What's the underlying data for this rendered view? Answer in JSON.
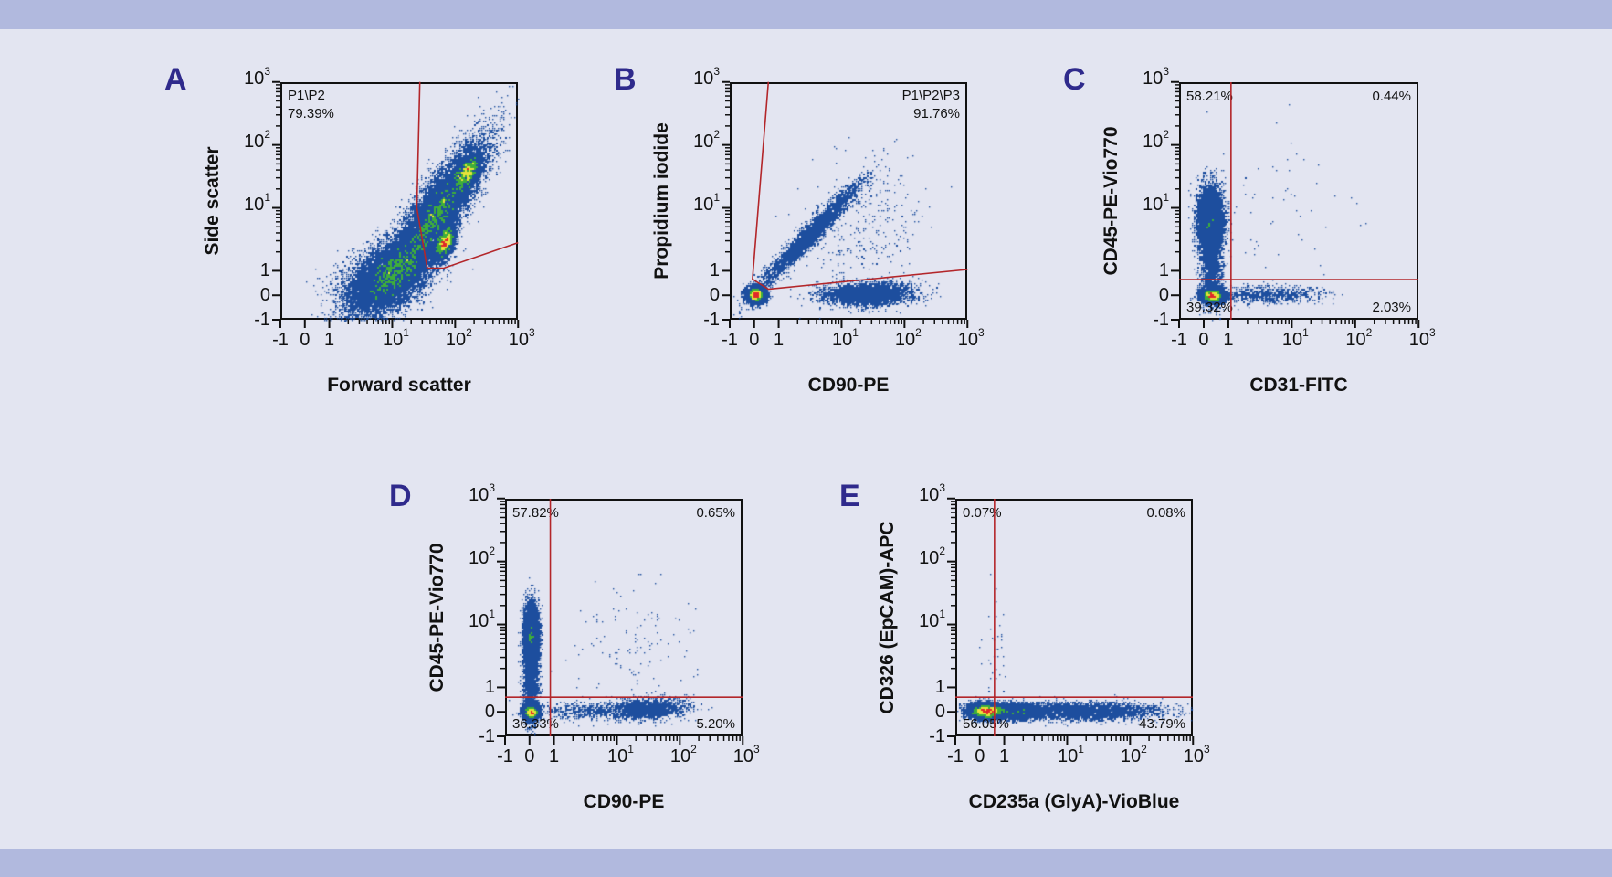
{
  "colors": {
    "background": "#e3e5f1",
    "band": "#b1b9de",
    "panel_letter": "#2f2a8c",
    "points_low": "#1d4e9e",
    "points_mid": "#3fae3a",
    "points_high": "#e8e23a",
    "points_peak": "#e0282a",
    "gate": "#b3262a"
  },
  "chart_data": [
    {
      "type": "scatter",
      "panel": "A",
      "xlabel": "Forward scatter",
      "ylabel": "Side scatter",
      "scale": "biexponential",
      "xlim": [
        -1,
        1000
      ],
      "ylim": [
        -1,
        1000
      ],
      "ticks": [
        {
          "value": -1,
          "label": "-1"
        },
        {
          "value": 0,
          "label": "0"
        },
        {
          "value": 1,
          "label": "1"
        },
        {
          "value": 10,
          "label": "10",
          "sup": "1"
        },
        {
          "value": 100,
          "label": "10",
          "sup": "2"
        },
        {
          "value": 1000,
          "label": "10",
          "sup": "3"
        }
      ],
      "gate": {
        "type": "polygon",
        "name": "P1\\P2",
        "percent": "79.39%",
        "label_position": "top-left",
        "points": [
          [
            27.5,
            1000
          ],
          [
            24.6,
            10
          ],
          [
            36,
            1.1
          ],
          [
            65,
            1.1
          ],
          [
            1000,
            2.8
          ]
        ]
      },
      "populations": [
        {
          "x": 8,
          "y": 0.8,
          "sd_x_decades": 0.35,
          "sd_y_decades": 0.3,
          "rho": 0.5,
          "n": 9000
        },
        {
          "x": 45,
          "y": 8,
          "sd_x_decades": 0.38,
          "sd_y_decades": 0.55,
          "rho": 0.85,
          "n": 12000
        },
        {
          "x": 65,
          "y": 3,
          "sd_x_decades": 0.08,
          "sd_y_decades": 0.13,
          "rho": 0.5,
          "n": 2500
        },
        {
          "x": 150,
          "y": 40,
          "sd_x_decades": 0.1,
          "sd_y_decades": 0.14,
          "rho": 0.5,
          "n": 2200
        }
      ]
    },
    {
      "type": "scatter",
      "panel": "B",
      "xlabel": "CD90-PE",
      "ylabel": "Propidium iodide",
      "scale": "biexponential",
      "xlim": [
        -1,
        1000
      ],
      "ylim": [
        -1,
        1000
      ],
      "ticks": [
        {
          "value": -1,
          "label": "-1"
        },
        {
          "value": 0,
          "label": "0"
        },
        {
          "value": 1,
          "label": "1"
        },
        {
          "value": 10,
          "label": "10",
          "sup": "1"
        },
        {
          "value": 100,
          "label": "10",
          "sup": "2"
        },
        {
          "value": 1000,
          "label": "10",
          "sup": "3"
        }
      ],
      "gate": {
        "type": "polygon",
        "name": "P1\\P2\\P3",
        "percent": "91.76%",
        "label_position": "top-right",
        "points": [
          [
            0.58,
            1000
          ],
          [
            -0.07,
            0.66
          ],
          [
            0.58,
            0.25
          ],
          [
            1000,
            1.05
          ]
        ]
      },
      "populations": [
        {
          "x": 0,
          "y": 0.1,
          "sd_x_decades": 0.07,
          "sd_y_decades": 0.06,
          "rho": 0,
          "n": 6000
        },
        {
          "x": 3,
          "y": 4,
          "sd_x_decades": 0.4,
          "sd_y_decades": 0.42,
          "rho": 0.97,
          "n": 3000
        },
        {
          "x": 25,
          "y": 0.1,
          "sd_x_decades": 0.35,
          "sd_y_decades": 0.09,
          "rho": 0.1,
          "n": 3000
        },
        {
          "x": 20,
          "y": 5,
          "sd_x_decades": 0.5,
          "sd_y_decades": 0.5,
          "rho": 0.3,
          "n": 300
        }
      ]
    },
    {
      "type": "scatter",
      "panel": "C",
      "xlabel": "CD31-FITC",
      "ylabel": "CD45-PE-Vio770",
      "scale": "biexponential",
      "xlim": [
        -1,
        1000
      ],
      "ylim": [
        -1,
        1000
      ],
      "ticks": [
        {
          "value": -1,
          "label": "-1"
        },
        {
          "value": 0,
          "label": "0"
        },
        {
          "value": 1,
          "label": "1"
        },
        {
          "value": 10,
          "label": "10",
          "sup": "1"
        },
        {
          "value": 100,
          "label": "10",
          "sup": "2"
        },
        {
          "value": 1000,
          "label": "10",
          "sup": "3"
        }
      ],
      "gate": {
        "type": "quadrant",
        "x": 1.1,
        "y": 0.64,
        "quadrants": {
          "top-left": "58.21%",
          "top-right": "0.44%",
          "bottom-left": "39.32%",
          "bottom-right": "2.03%"
        }
      },
      "populations": [
        {
          "x": 0.2,
          "y": 7,
          "sd_x_decades": 0.1,
          "sd_y_decades": 0.25,
          "rho": 0,
          "n": 5000
        },
        {
          "x": 0.3,
          "y": 0.05,
          "sd_x_decades": 0.09,
          "sd_y_decades": 0.06,
          "rho": 0,
          "n": 4000
        },
        {
          "x": 0.25,
          "y": 1.5,
          "sd_x_decades": 0.09,
          "sd_y_decades": 0.35,
          "rho": 0,
          "n": 1500
        },
        {
          "x": 4,
          "y": 0.1,
          "sd_x_decades": 0.4,
          "sd_y_decades": 0.07,
          "rho": 0,
          "n": 700
        },
        {
          "x": 5,
          "y": 10,
          "sd_x_decades": 0.6,
          "sd_y_decades": 0.6,
          "rho": 0,
          "n": 60
        }
      ]
    },
    {
      "type": "scatter",
      "panel": "D",
      "xlabel": "CD90-PE",
      "ylabel": "CD45-PE-Vio770",
      "scale": "biexponential",
      "xlim": [
        -1,
        1000
      ],
      "ylim": [
        -1,
        1000
      ],
      "ticks": [
        {
          "value": -1,
          "label": "-1"
        },
        {
          "value": 0,
          "label": "0"
        },
        {
          "value": 1,
          "label": "1"
        },
        {
          "value": 10,
          "label": "10",
          "sup": "1"
        },
        {
          "value": 100,
          "label": "10",
          "sup": "2"
        },
        {
          "value": 1000,
          "label": "10",
          "sup": "3"
        }
      ],
      "gate": {
        "type": "quadrant",
        "x": 0.85,
        "y": 0.6,
        "quadrants": {
          "top-left": "57.82%",
          "top-right": "0.65%",
          "bottom-left": "36.33%",
          "bottom-right": "5.20%"
        }
      },
      "populations": [
        {
          "x": 0,
          "y": 7,
          "sd_x_decades": 0.06,
          "sd_y_decades": 0.25,
          "rho": 0,
          "n": 5000
        },
        {
          "x": 0,
          "y": 0.05,
          "sd_x_decades": 0.06,
          "sd_y_decades": 0.06,
          "rho": 0,
          "n": 3500
        },
        {
          "x": 0,
          "y": 1.5,
          "sd_x_decades": 0.06,
          "sd_y_decades": 0.35,
          "rho": 0,
          "n": 1500
        },
        {
          "x": 30,
          "y": 0.2,
          "sd_x_decades": 0.3,
          "sd_y_decades": 0.08,
          "rho": 0.2,
          "n": 1500
        },
        {
          "x": 3,
          "y": 0.1,
          "sd_x_decades": 0.4,
          "sd_y_decades": 0.07,
          "rho": 0,
          "n": 500
        },
        {
          "x": 20,
          "y": 5,
          "sd_x_decades": 0.5,
          "sd_y_decades": 0.5,
          "rho": 0,
          "n": 120
        }
      ]
    },
    {
      "type": "scatter",
      "panel": "E",
      "xlabel": "CD235a (GlyA)-VioBlue",
      "ylabel": "CD326 (EpCAM)-APC",
      "scale": "biexponential",
      "xlim": [
        -1,
        1000
      ],
      "ylim": [
        -1,
        1000
      ],
      "ticks": [
        {
          "value": -1,
          "label": "-1"
        },
        {
          "value": 0,
          "label": "0"
        },
        {
          "value": 1,
          "label": "1"
        },
        {
          "value": 10,
          "label": "10",
          "sup": "1"
        },
        {
          "value": 100,
          "label": "10",
          "sup": "2"
        },
        {
          "value": 1000,
          "label": "10",
          "sup": "3"
        }
      ],
      "gate": {
        "type": "quadrant",
        "x": 0.6,
        "y": 0.6,
        "quadrants": {
          "top-left": "0.07%",
          "top-right": "0.08%",
          "bottom-left": "56.05%",
          "bottom-right": "43.79%"
        }
      },
      "populations": [
        {
          "x": 0.2,
          "y": 0.1,
          "sd_x_decades": 0.14,
          "sd_y_decades": 0.06,
          "rho": 0,
          "n": 6000
        },
        {
          "x": 1.5,
          "y": 0.1,
          "sd_x_decades": 0.2,
          "sd_y_decades": 0.06,
          "rho": 0,
          "n": 2500
        },
        {
          "x": 20,
          "y": 0.1,
          "sd_x_decades": 0.6,
          "sd_y_decades": 0.07,
          "rho": 0,
          "n": 2500
        },
        {
          "x": 0.5,
          "y": 3,
          "sd_x_decades": 0.1,
          "sd_y_decades": 0.5,
          "rho": 0,
          "n": 40
        }
      ]
    }
  ]
}
